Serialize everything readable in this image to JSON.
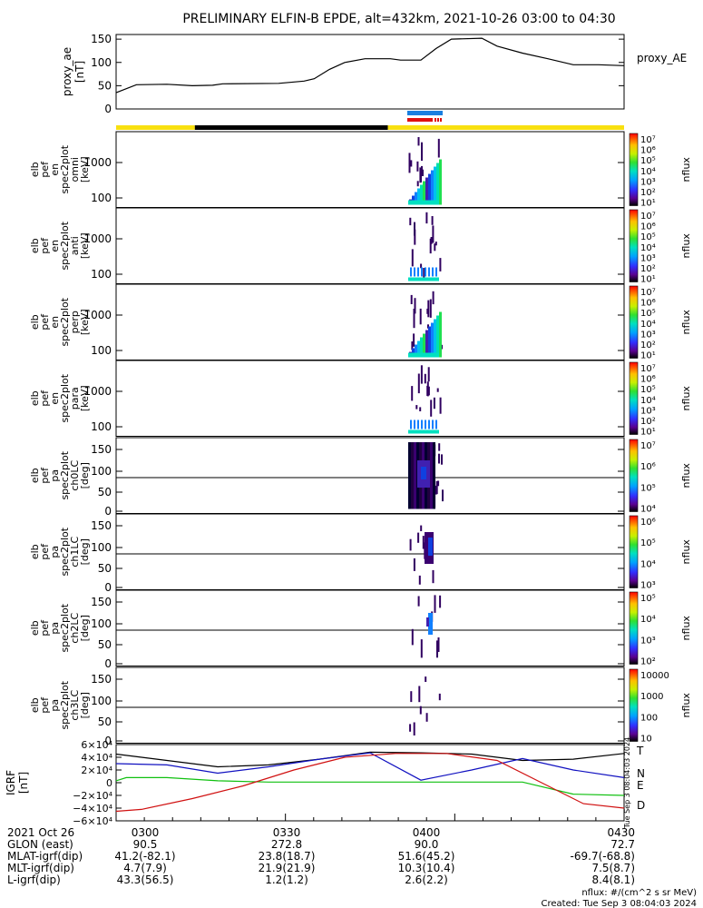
{
  "title": "PRELIMINARY ELFIN-B EPDE, alt=432km, 2021-10-26 03:00 to 04:30",
  "colors": {
    "yellow": "#f8e010",
    "black": "#000000",
    "blue": "#1a7fe0",
    "red": "#e01010",
    "grf_t": "#000000",
    "grf_n": "#1010c0",
    "grf_e": "#10c010",
    "grf_d": "#d01010"
  },
  "panels": [
    {
      "ylabel": [
        "proxy_ae",
        "[nT]"
      ],
      "ticks": [
        "150",
        "100",
        "50",
        "0"
      ],
      "right_label": "proxy_AE"
    },
    {
      "ylabel": [
        "elb",
        "pef",
        "en",
        "spec2plot",
        "omni",
        "[keV]"
      ],
      "ticks": [
        "1000",
        "100"
      ],
      "cb_ticks": [
        "10⁷",
        "10⁶",
        "10⁵",
        "10⁴",
        "10³",
        "10²",
        "10¹"
      ],
      "cb_label": "nflux"
    },
    {
      "ylabel": [
        "elb",
        "pef",
        "en",
        "spec2plot",
        "anti",
        "[keV]"
      ],
      "ticks": [
        "1000",
        "100"
      ],
      "cb_ticks": [
        "10⁷",
        "10⁶",
        "10⁵",
        "10⁴",
        "10³",
        "10²",
        "10¹"
      ],
      "cb_label": "nflux"
    },
    {
      "ylabel": [
        "elb",
        "pef",
        "en",
        "spec2plot",
        "perp",
        "[keV]"
      ],
      "ticks": [
        "1000",
        "100"
      ],
      "cb_ticks": [
        "10⁷",
        "10⁶",
        "10⁵",
        "10⁴",
        "10³",
        "10²",
        "10¹"
      ],
      "cb_label": "nflux"
    },
    {
      "ylabel": [
        "elb",
        "pef",
        "en",
        "spec2plot",
        "para",
        "[keV]"
      ],
      "ticks": [
        "1000",
        "100"
      ],
      "cb_ticks": [
        "10⁷",
        "10⁶",
        "10⁵",
        "10⁴",
        "10³",
        "10²",
        "10¹"
      ],
      "cb_label": "nflux"
    },
    {
      "ylabel": [
        "elb",
        "pef",
        "pa",
        "spec2plot",
        "ch0LC",
        "[deg]"
      ],
      "ticks": [
        "150",
        "100",
        "50",
        "0"
      ],
      "cb_ticks": [
        "10⁷",
        "10⁶",
        "10⁵",
        "10⁴"
      ],
      "cb_label": "nflux"
    },
    {
      "ylabel": [
        "elb",
        "pef",
        "pa",
        "spec2plot",
        "ch1LC",
        "[deg]"
      ],
      "ticks": [
        "150",
        "100",
        "50",
        "0"
      ],
      "cb_ticks": [
        "10⁶",
        "10⁵",
        "10⁴",
        "10³"
      ],
      "cb_label": "nflux"
    },
    {
      "ylabel": [
        "elb",
        "pef",
        "pa",
        "spec2plot",
        "ch2LC",
        "[deg]"
      ],
      "ticks": [
        "150",
        "100",
        "50",
        "0"
      ],
      "cb_ticks": [
        "10⁵",
        "10⁴",
        "10³",
        "10²"
      ],
      "cb_label": "nflux"
    },
    {
      "ylabel": [
        "elb",
        "pef",
        "pa",
        "spec2plot",
        "ch3LC",
        "[deg]"
      ],
      "ticks": [
        "150",
        "100",
        "50",
        "0"
      ],
      "cb_ticks": [
        "10000",
        "1000",
        "100",
        "10"
      ],
      "cb_label": "nflux"
    },
    {
      "ylabel": [
        "IGRF",
        "[nT]"
      ],
      "ticks": [
        "6×10⁴",
        "4×10⁴",
        "2×10⁴",
        "0",
        "−2×10⁴",
        "−4×10⁴",
        "−6×10⁴"
      ],
      "legend": [
        "T",
        "N",
        "E",
        "D"
      ]
    }
  ],
  "footer": {
    "rows": [
      {
        "label": "2021 Oct 26",
        "values": [
          "0300",
          "0330",
          "0400",
          "0430"
        ]
      },
      {
        "label": "GLON (east)",
        "values": [
          "90.5",
          "272.8",
          "90.0",
          "72.7"
        ]
      },
      {
        "label": "MLAT-igrf(dip)",
        "values": [
          "41.2(-82.1)",
          "23.8(18.7)",
          "51.6(45.2)",
          "-69.7(-68.8)"
        ]
      },
      {
        "label": "MLT-igrf(dip)",
        "values": [
          "4.7(7.9)",
          "21.9(21.9)",
          "10.3(10.4)",
          "7.5(8.7)"
        ]
      },
      {
        "label": "L-igrf(dip)",
        "values": [
          "43.3(56.5)",
          "1.2(1.2)",
          "2.6(2.2)",
          "8.4(8.1)"
        ]
      }
    ],
    "units_note": "nflux: #/(cm^2 s sr MeV)",
    "created": "Created: Tue Sep  3 08:04:03 2024",
    "side_stamp": "Tue Sep  3 08:04:03 2024"
  },
  "chart_data": {
    "type": "line",
    "x_range": [
      "03:00",
      "04:30"
    ],
    "proxy_ae": {
      "name": "proxy_AE",
      "ylim": [
        0,
        160
      ],
      "points": [
        [
          0,
          35
        ],
        [
          4,
          52
        ],
        [
          10,
          53
        ],
        [
          15,
          50
        ],
        [
          19,
          51
        ],
        [
          21,
          54
        ],
        [
          32,
          55
        ],
        [
          37,
          60
        ],
        [
          39,
          65
        ],
        [
          42,
          85
        ],
        [
          45,
          100
        ],
        [
          49,
          108
        ],
        [
          54,
          108
        ],
        [
          56,
          105
        ],
        [
          60,
          105
        ],
        [
          63,
          130
        ],
        [
          66,
          150
        ],
        [
          72,
          152
        ],
        [
          75,
          135
        ],
        [
          80,
          120
        ],
        [
          85,
          108
        ],
        [
          90,
          95
        ],
        [
          95,
          95
        ],
        [
          100,
          93
        ]
      ]
    },
    "coverage_bar": [
      {
        "from": 0,
        "to": 15.5,
        "color": "yellow"
      },
      {
        "from": 15.5,
        "to": 53.5,
        "color": "black"
      },
      {
        "from": 53.5,
        "to": 100,
        "color": "yellow"
      }
    ],
    "igrf": {
      "ylim": [
        -60000,
        60000
      ],
      "series": [
        {
          "name": "T",
          "points": [
            [
              0,
              45000
            ],
            [
              10,
              35000
            ],
            [
              20,
              25000
            ],
            [
              30,
              28000
            ],
            [
              40,
              37000
            ],
            [
              50,
              48000
            ],
            [
              60,
              47000
            ],
            [
              70,
              45000
            ],
            [
              80,
              35000
            ],
            [
              90,
              37000
            ],
            [
              100,
              46000
            ]
          ]
        },
        {
          "name": "N",
          "points": [
            [
              0,
              30000
            ],
            [
              10,
              28000
            ],
            [
              20,
              15000
            ],
            [
              30,
              25000
            ],
            [
              40,
              37000
            ],
            [
              50,
              47000
            ],
            [
              60,
              4000
            ],
            [
              70,
              20000
            ],
            [
              80,
              38000
            ],
            [
              90,
              20000
            ],
            [
              100,
              8000
            ]
          ]
        },
        {
          "name": "E",
          "points": [
            [
              0,
              3000
            ],
            [
              2,
              8000
            ],
            [
              10,
              8000
            ],
            [
              20,
              3000
            ],
            [
              30,
              1000
            ],
            [
              50,
              1000
            ],
            [
              70,
              1000
            ],
            [
              80,
              1000
            ],
            [
              90,
              -18000
            ],
            [
              100,
              -20000
            ]
          ]
        },
        {
          "name": "D",
          "points": [
            [
              0,
              -45000
            ],
            [
              5,
              -42000
            ],
            [
              15,
              -25000
            ],
            [
              25,
              -5000
            ],
            [
              35,
              20000
            ],
            [
              45,
              40000
            ],
            [
              55,
              46000
            ],
            [
              65,
              46000
            ],
            [
              75,
              35000
            ],
            [
              85,
              -5000
            ],
            [
              92,
              -33000
            ],
            [
              100,
              -40000
            ]
          ]
        }
      ]
    }
  }
}
